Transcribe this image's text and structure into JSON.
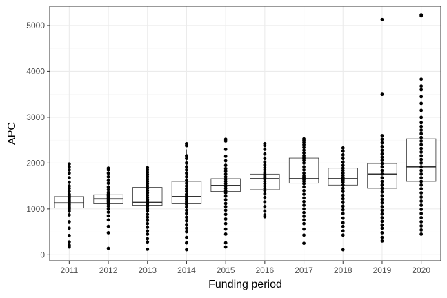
{
  "chart_data": {
    "type": "boxplot",
    "title": "",
    "xlabel": "Funding period",
    "ylabel": "APC",
    "categories": [
      "2011",
      "2012",
      "2013",
      "2014",
      "2015",
      "2016",
      "2017",
      "2018",
      "2019",
      "2020"
    ],
    "ylim": [
      -130,
      5420
    ],
    "yticks": [
      0,
      1000,
      2000,
      3000,
      4000,
      5000
    ],
    "yticks_labels": [
      "0",
      "1000",
      "2000",
      "3000",
      "4000",
      "5000"
    ],
    "grid": true,
    "legend": "none",
    "colors": {
      "panel_border": "#333333",
      "grid_major": "#ebebeb",
      "grid_minor": "#f5f5f5",
      "box_stroke": "#333333",
      "points": "#000000"
    },
    "boxes": [
      {
        "category": "2011",
        "q1": 1020,
        "median": 1130,
        "q3": 1270,
        "whisker_low": 870,
        "whisker_high": 1580
      },
      {
        "category": "2012",
        "q1": 1110,
        "median": 1220,
        "q3": 1310,
        "whisker_low": 930,
        "whisker_high": 1560
      },
      {
        "category": "2013",
        "q1": 1080,
        "median": 1140,
        "q3": 1470,
        "whisker_low": 600,
        "whisker_high": 1900
      },
      {
        "category": "2014",
        "q1": 1110,
        "median": 1270,
        "q3": 1600,
        "whisker_low": 500,
        "whisker_high": 2300
      },
      {
        "category": "2015",
        "q1": 1380,
        "median": 1510,
        "q3": 1660,
        "whisker_low": 970,
        "whisker_high": 2050
      },
      {
        "category": "2016",
        "q1": 1420,
        "median": 1660,
        "q3": 1760,
        "whisker_low": 950,
        "whisker_high": 2250
      },
      {
        "category": "2017",
        "q1": 1560,
        "median": 1660,
        "q3": 2110,
        "whisker_low": 750,
        "whisker_high": 2530
      },
      {
        "category": "2018",
        "q1": 1520,
        "median": 1660,
        "q3": 1890,
        "whisker_low": 980,
        "whisker_high": 2330
      },
      {
        "category": "2019",
        "q1": 1450,
        "median": 1760,
        "q3": 1990,
        "whisker_low": 650,
        "whisker_high": 2600
      },
      {
        "category": "2020",
        "q1": 1600,
        "median": 1920,
        "q3": 2530,
        "whisker_low": 450,
        "whisker_high": 3450
      }
    ],
    "points": [
      {
        "category": "2011",
        "values": [
          170,
          210,
          280,
          420,
          580,
          720,
          870,
          950,
          1000,
          1040,
          1070,
          1100,
          1130,
          1160,
          1190,
          1220,
          1250,
          1280,
          1300,
          1320,
          1380,
          1450,
          1500,
          1580,
          1680,
          1780,
          1850,
          1920,
          1980
        ]
      },
      {
        "category": "2012",
        "values": [
          140,
          480,
          620,
          760,
          850,
          930,
          1000,
          1060,
          1110,
          1150,
          1180,
          1210,
          1230,
          1260,
          1290,
          1320,
          1360,
          1420,
          1480,
          1560,
          1620,
          1700,
          1780,
          1850,
          1890
        ]
      },
      {
        "category": "2013",
        "values": [
          120,
          280,
          350,
          450,
          520,
          600,
          680,
          750,
          820,
          880,
          950,
          1000,
          1050,
          1080,
          1110,
          1140,
          1170,
          1200,
          1250,
          1300,
          1350,
          1400,
          1450,
          1500,
          1550,
          1600,
          1650,
          1700,
          1750,
          1800,
          1850,
          1900
        ]
      },
      {
        "category": "2014",
        "values": [
          110,
          260,
          380,
          500,
          580,
          660,
          740,
          820,
          900,
          970,
          1040,
          1100,
          1150,
          1200,
          1240,
          1280,
          1320,
          1380,
          1440,
          1500,
          1560,
          1620,
          1700,
          1780,
          1850,
          1920,
          2000,
          2100,
          2160,
          2380,
          2420
        ]
      },
      {
        "category": "2015",
        "values": [
          170,
          260,
          450,
          560,
          680,
          780,
          880,
          970,
          1050,
          1120,
          1200,
          1280,
          1350,
          1400,
          1450,
          1500,
          1550,
          1600,
          1650,
          1700,
          1760,
          1820,
          1880,
          1950,
          2050,
          2150,
          2300,
          2480,
          2520
        ]
      },
      {
        "category": "2016",
        "values": [
          830,
          870,
          950,
          1050,
          1150,
          1250,
          1330,
          1400,
          1450,
          1500,
          1550,
          1600,
          1650,
          1680,
          1720,
          1760,
          1800,
          1850,
          1900,
          1960,
          2020,
          2100,
          2200,
          2300,
          2380,
          2420
        ]
      },
      {
        "category": "2017",
        "values": [
          250,
          430,
          560,
          680,
          760,
          840,
          920,
          1000,
          1080,
          1160,
          1240,
          1320,
          1400,
          1480,
          1550,
          1600,
          1640,
          1680,
          1720,
          1780,
          1850,
          1920,
          2000,
          2060,
          2110,
          2160,
          2220,
          2280,
          2340,
          2400,
          2450,
          2500,
          2530
        ]
      },
      {
        "category": "2018",
        "values": [
          110,
          430,
          520,
          620,
          700,
          800,
          900,
          980,
          1060,
          1140,
          1220,
          1300,
          1380,
          1450,
          1520,
          1580,
          1630,
          1680,
          1730,
          1780,
          1840,
          1890,
          1950,
          2020,
          2100,
          2180,
          2260,
          2330
        ]
      },
      {
        "category": "2019",
        "values": [
          300,
          380,
          480,
          580,
          650,
          730,
          810,
          890,
          970,
          1050,
          1130,
          1210,
          1290,
          1370,
          1450,
          1520,
          1600,
          1680,
          1760,
          1840,
          1920,
          1990,
          2060,
          2130,
          2200,
          2280,
          2360,
          2440,
          2520,
          2600,
          3500,
          5130
        ]
      },
      {
        "category": "2020",
        "values": [
          450,
          540,
          630,
          720,
          810,
          900,
          990,
          1080,
          1170,
          1260,
          1350,
          1440,
          1520,
          1600,
          1680,
          1760,
          1840,
          1920,
          2000,
          2080,
          2160,
          2240,
          2320,
          2400,
          2480,
          2560,
          2640,
          2720,
          2800,
          2880,
          3000,
          3150,
          3300,
          3450,
          3600,
          3680,
          3830,
          5210,
          5230
        ]
      }
    ]
  }
}
